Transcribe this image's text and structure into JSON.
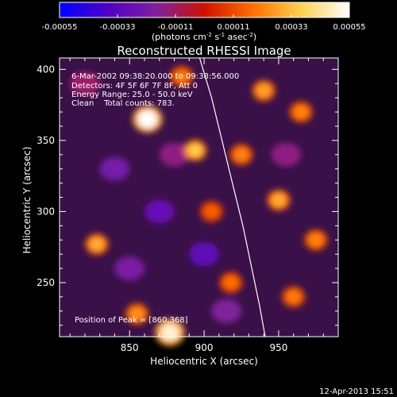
{
  "chart_data": {
    "type": "heatmap",
    "title": "Reconstructed RHESSI Image",
    "xlabel": "Heliocentric X (arcsec)",
    "ylabel": "Heliocentric Y (arcsec)",
    "xlim": [
      803,
      990
    ],
    "ylim": [
      212,
      408
    ],
    "x_ticks": [
      850,
      900,
      950
    ],
    "y_ticks": [
      250,
      300,
      350,
      400
    ],
    "colorbar": {
      "ticks": [
        "-0.00055",
        "-0.00033",
        "-0.00011",
        "0.00011",
        "0.00033",
        "0.00055"
      ],
      "range": [
        -0.00055,
        0.00055
      ],
      "unit_label": "(photons cm-2 s-1 asec-2)",
      "colors": [
        "#0000ff",
        "#5000c8",
        "#8020a0",
        "#d01000",
        "#ff7000",
        "#ffd050",
        "#ffffff"
      ]
    },
    "annotations": [
      "6-Mar-2002 09:38:20.000 to 09:38:56.000",
      "Detectors: 4F 5F 6F 7F 8F, Att 0",
      "Energy Range: 25.0 - 50.0 keV",
      "Clean    Total counts: 783."
    ],
    "peak_label": "Position of Peak = [860,368]",
    "peak_position": [
      860,
      368
    ],
    "limb_curve": [
      [
        897,
        408
      ],
      [
        905,
        380
      ],
      [
        912,
        350
      ],
      [
        919,
        320
      ],
      [
        926,
        290
      ],
      [
        932,
        260
      ],
      [
        937,
        235
      ],
      [
        941,
        212
      ]
    ],
    "bright_sources": [
      {
        "x": 862,
        "y": 365,
        "value": 0.00055
      },
      {
        "x": 894,
        "y": 343,
        "value": 0.00036
      },
      {
        "x": 828,
        "y": 277,
        "value": 0.0003
      },
      {
        "x": 877,
        "y": 215,
        "value": 0.0005
      },
      {
        "x": 855,
        "y": 228,
        "value": 0.00025
      },
      {
        "x": 950,
        "y": 308,
        "value": 0.0003
      },
      {
        "x": 965,
        "y": 370,
        "value": 0.00022
      },
      {
        "x": 940,
        "y": 385,
        "value": 0.00028
      },
      {
        "x": 925,
        "y": 340,
        "value": 0.00022
      },
      {
        "x": 975,
        "y": 280,
        "value": 0.00022
      },
      {
        "x": 960,
        "y": 240,
        "value": 0.0002
      },
      {
        "x": 885,
        "y": 395,
        "value": 0.0002
      },
      {
        "x": 905,
        "y": 300,
        "value": 0.00015
      },
      {
        "x": 918,
        "y": 250,
        "value": 0.00018
      }
    ],
    "dim_sources": [
      {
        "x": 840,
        "y": 330,
        "value": -0.00022
      },
      {
        "x": 870,
        "y": 300,
        "value": -0.00028
      },
      {
        "x": 900,
        "y": 270,
        "value": -0.0003
      },
      {
        "x": 850,
        "y": 260,
        "value": -0.0002
      },
      {
        "x": 880,
        "y": 340,
        "value": -0.00015
      },
      {
        "x": 915,
        "y": 230,
        "value": -0.00018
      },
      {
        "x": 955,
        "y": 340,
        "value": -0.00015
      },
      {
        "x": 820,
        "y": 390,
        "value": -0.00012
      }
    ]
  },
  "footer_timestamp": "12-Apr-2013 15:51"
}
